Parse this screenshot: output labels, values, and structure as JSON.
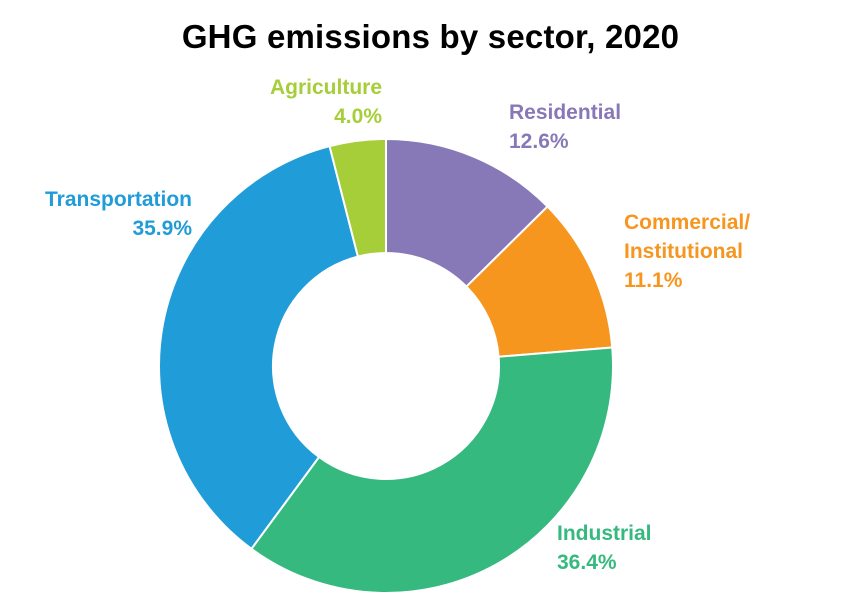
{
  "chart_data": {
    "type": "pie",
    "title": "GHG emissions by sector, 2020",
    "donut": true,
    "slices": [
      {
        "name": "Residential",
        "label_lines": [
          "Residential"
        ],
        "value": 12.6,
        "value_text": "12.6%",
        "color": "#8778B7"
      },
      {
        "name": "Commercial/ Institutional",
        "label_lines": [
          "Commercial/",
          "Institutional"
        ],
        "value": 11.1,
        "value_text": "11.1%",
        "color": "#F7961F"
      },
      {
        "name": "Industrial",
        "label_lines": [
          "Industrial"
        ],
        "value": 36.4,
        "value_text": "36.4%",
        "color": "#36B97F"
      },
      {
        "name": "Transportation",
        "label_lines": [
          "Transportation"
        ],
        "value": 35.9,
        "value_text": "35.9%",
        "color": "#209CD8"
      },
      {
        "name": "Agriculture",
        "label_lines": [
          "Agriculture"
        ],
        "value": 4.0,
        "value_text": "4.0%",
        "color": "#A6CE39"
      }
    ]
  }
}
